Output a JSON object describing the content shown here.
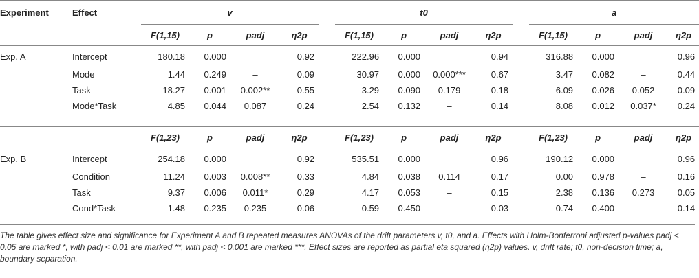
{
  "header": {
    "experiment": "Experiment",
    "effect": "Effect",
    "group_v": "v",
    "group_t0": "t0",
    "group_a": "a"
  },
  "expA": {
    "cols": {
      "F": "F(1,15)",
      "p": "p",
      "padj": "padj",
      "eta": "η2p"
    },
    "label": "Exp. A",
    "rows": [
      {
        "effect": "Intercept",
        "v": [
          "180.18",
          "0.000",
          "",
          "0.92"
        ],
        "t0": [
          "222.96",
          "0.000",
          "",
          "0.94"
        ],
        "a": [
          "316.88",
          "0.000",
          "",
          "0.96"
        ]
      },
      {
        "effect": "Mode",
        "v": [
          "1.44",
          "0.249",
          "–",
          "0.09"
        ],
        "t0": [
          "30.97",
          "0.000",
          "0.000***",
          "0.67"
        ],
        "a": [
          "3.47",
          "0.082",
          "–",
          "0.44"
        ]
      },
      {
        "effect": "Task",
        "v": [
          "18.27",
          "0.001",
          "0.002**",
          "0.55"
        ],
        "t0": [
          "3.29",
          "0.090",
          "0.179",
          "0.18"
        ],
        "a": [
          "6.09",
          "0.026",
          "0.052",
          "0.09"
        ]
      },
      {
        "effect": "Mode*Task",
        "v": [
          "4.85",
          "0.044",
          "0.087",
          "0.24"
        ],
        "t0": [
          "2.54",
          "0.132",
          "–",
          "0.14"
        ],
        "a": [
          "8.08",
          "0.012",
          "0.037*",
          "0.24"
        ]
      }
    ]
  },
  "expB": {
    "cols": {
      "F": "F(1,23)",
      "p": "p",
      "padj": "padj",
      "eta": "η2p"
    },
    "label": "Exp. B",
    "rows": [
      {
        "effect": "Intercept",
        "v": [
          "254.18",
          "0.000",
          "",
          "0.92"
        ],
        "t0": [
          "535.51",
          "0.000",
          "",
          "0.96"
        ],
        "a": [
          "190.12",
          "0.000",
          "",
          "0.96"
        ]
      },
      {
        "effect": "Condition",
        "v": [
          "11.24",
          "0.003",
          "0.008**",
          "0.33"
        ],
        "t0": [
          "4.84",
          "0.038",
          "0.114",
          "0.17"
        ],
        "a": [
          "0.00",
          "0.978",
          "–",
          "0.16"
        ]
      },
      {
        "effect": "Task",
        "v": [
          "9.37",
          "0.006",
          "0.011*",
          "0.29"
        ],
        "t0": [
          "4.17",
          "0.053",
          "–",
          "0.15"
        ],
        "a": [
          "2.38",
          "0.136",
          "0.273",
          "0.05"
        ]
      },
      {
        "effect": "Cond*Task",
        "v": [
          "1.48",
          "0.235",
          "0.235",
          "0.06"
        ],
        "t0": [
          "0.59",
          "0.450",
          "–",
          "0.03"
        ],
        "a": [
          "0.74",
          "0.400",
          "–",
          "0.14"
        ]
      }
    ]
  },
  "note": "The table gives effect size and significance for Experiment A and B repeated measures ANOVAs of the drift parameters v, t0, and a. Effects with Holm-Bonferroni adjusted p-values padj < 0.05 are marked *, with padj < 0.01 are marked **, with padj < 0.001 are marked ***. Effect sizes are reported as partial eta squared (η2p) values. v, drift rate; t0, non-decision time; a, boundary separation."
}
